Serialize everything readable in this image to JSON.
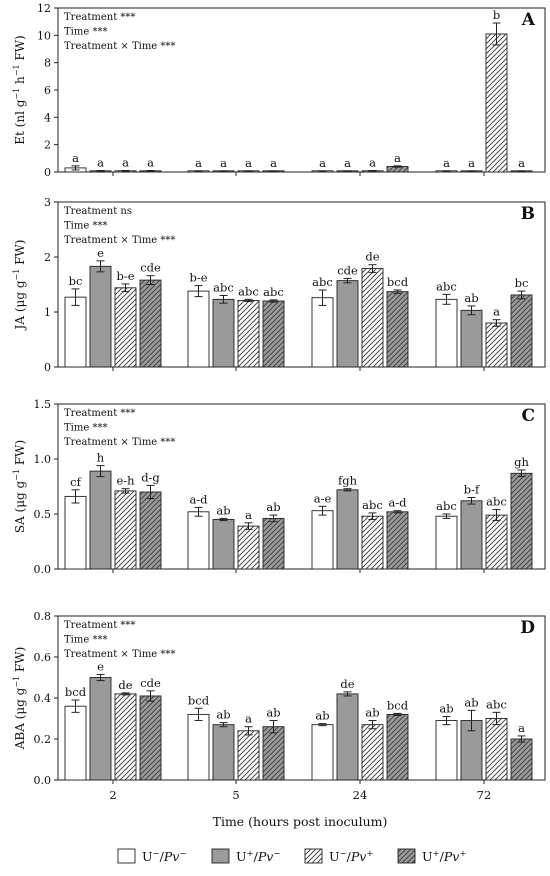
{
  "figure": {
    "xlabel": "Time (hours post inoculum)",
    "categories": [
      "2",
      "5",
      "24",
      "72"
    ],
    "legend": [
      {
        "prefix": "U",
        "sup1": "−",
        "mid": "/",
        "pv": "Pv",
        "sup2": "−",
        "pattern": "open"
      },
      {
        "prefix": "U",
        "sup1": "+",
        "mid": "/",
        "pv": "Pv",
        "sup2": "−",
        "pattern": "grey"
      },
      {
        "prefix": "U",
        "sup1": "−",
        "mid": "/",
        "pv": "Pv",
        "sup2": "+",
        "pattern": "hatch"
      },
      {
        "prefix": "U",
        "sup1": "+",
        "mid": "/",
        "pv": "Pv",
        "sup2": "+",
        "pattern": "grey-hatch"
      }
    ]
  },
  "chart_data": [
    {
      "type": "bar",
      "panel": "A",
      "ylabel_parts": [
        "Et (nl g",
        "−1",
        " h",
        "−1",
        " FW)"
      ],
      "ylim": [
        0,
        12
      ],
      "yticks": [
        0,
        2,
        4,
        6,
        8,
        10,
        12
      ],
      "stats": [
        "Treatment ***",
        "Time ***",
        "Treatment × Time ***"
      ],
      "series": [
        {
          "name": "U−/Pv−",
          "values": [
            0.3,
            0.05,
            0.05,
            0.05
          ],
          "errors": [
            0.15,
            0.03,
            0.03,
            0.03
          ],
          "letters": [
            "a",
            "a",
            "a",
            "a"
          ]
        },
        {
          "name": "U+/Pv−",
          "values": [
            0.08,
            0.05,
            0.05,
            0.05
          ],
          "errors": [
            0.03,
            0.03,
            0.03,
            0.03
          ],
          "letters": [
            "a",
            "a",
            "a",
            "a"
          ]
        },
        {
          "name": "U−/Pv+",
          "values": [
            0.08,
            0.05,
            0.08,
            10.1
          ],
          "errors": [
            0.03,
            0.03,
            0.03,
            0.8
          ],
          "letters": [
            "a",
            "a",
            "a",
            "b"
          ]
        },
        {
          "name": "U+/Pv+",
          "values": [
            0.08,
            0.05,
            0.4,
            0.05
          ],
          "errors": [
            0.03,
            0.03,
            0.05,
            0.03
          ],
          "letters": [
            "a",
            "a",
            "a",
            "a"
          ]
        }
      ]
    },
    {
      "type": "bar",
      "panel": "B",
      "ylabel_parts": [
        "JA (μg g",
        "−1",
        " FW)"
      ],
      "ylim": [
        0,
        3
      ],
      "yticks": [
        0,
        1,
        2,
        3
      ],
      "stats": [
        "Treatment ns",
        "Time ***",
        "Treatment × Time ***"
      ],
      "series": [
        {
          "name": "U−/Pv−",
          "values": [
            1.27,
            1.38,
            1.26,
            1.23
          ],
          "errors": [
            0.15,
            0.1,
            0.14,
            0.09
          ],
          "letters": [
            "bc",
            "b-e",
            "abc",
            "abc"
          ]
        },
        {
          "name": "U+/Pv−",
          "values": [
            1.83,
            1.23,
            1.57,
            1.03
          ],
          "errors": [
            0.1,
            0.07,
            0.04,
            0.08
          ],
          "letters": [
            "e",
            "abc",
            "cde",
            "ab"
          ]
        },
        {
          "name": "U−/Pv+",
          "values": [
            1.44,
            1.21,
            1.79,
            0.8
          ],
          "errors": [
            0.07,
            0.02,
            0.07,
            0.06
          ],
          "letters": [
            "b-e",
            "abc",
            "de",
            "a"
          ]
        },
        {
          "name": "U+/Pv+",
          "values": [
            1.58,
            1.2,
            1.37,
            1.31
          ],
          "errors": [
            0.08,
            0.02,
            0.03,
            0.07
          ],
          "letters": [
            "cde",
            "abc",
            "bcd",
            "bc"
          ]
        }
      ]
    },
    {
      "type": "bar",
      "panel": "C",
      "ylabel_parts": [
        "SA (μg g",
        "−1",
        " FW)"
      ],
      "ylim": [
        0,
        1.5
      ],
      "yticks": [
        0,
        0.5,
        1.0,
        1.5
      ],
      "ytick_labels": [
        "0.0",
        "0.5",
        "1.0",
        "1.5"
      ],
      "stats": [
        "Treatment ***",
        "Time ***",
        "Treatment × Time ***"
      ],
      "series": [
        {
          "name": "U−/Pv−",
          "values": [
            0.66,
            0.52,
            0.53,
            0.48
          ],
          "errors": [
            0.06,
            0.04,
            0.04,
            0.02
          ],
          "letters": [
            "cf",
            "a-d",
            "a-e",
            "abc"
          ]
        },
        {
          "name": "U+/Pv−",
          "values": [
            0.89,
            0.45,
            0.72,
            0.62
          ],
          "errors": [
            0.05,
            0.01,
            0.01,
            0.03
          ],
          "letters": [
            "h",
            "ab",
            "fgh",
            "b-f"
          ]
        },
        {
          "name": "U−/Pv+",
          "values": [
            0.71,
            0.39,
            0.48,
            0.49
          ],
          "errors": [
            0.02,
            0.03,
            0.03,
            0.05
          ],
          "letters": [
            "e-h",
            "a",
            "abc",
            "abc"
          ]
        },
        {
          "name": "U+/Pv+",
          "values": [
            0.7,
            0.46,
            0.52,
            0.87
          ],
          "errors": [
            0.06,
            0.03,
            0.01,
            0.03
          ],
          "letters": [
            "d-g",
            "ab",
            "a-d",
            "gh"
          ]
        }
      ]
    },
    {
      "type": "bar",
      "panel": "D",
      "ylabel_parts": [
        "ABA (μg g",
        "−1",
        " FW)"
      ],
      "ylim": [
        0,
        0.8
      ],
      "yticks": [
        0,
        0.2,
        0.4,
        0.6,
        0.8
      ],
      "ytick_labels": [
        "0.0",
        "0.2",
        "0.4",
        "0.6",
        "0.8"
      ],
      "stats": [
        "Treatment ***",
        "Time ***",
        "Treatment × Time ***"
      ],
      "series": [
        {
          "name": "U−/Pv−",
          "values": [
            0.36,
            0.32,
            0.27,
            0.29
          ],
          "errors": [
            0.03,
            0.03,
            0.005,
            0.02
          ],
          "letters": [
            "bcd",
            "bcd",
            "ab",
            "ab"
          ]
        },
        {
          "name": "U+/Pv−",
          "values": [
            0.5,
            0.27,
            0.42,
            0.29
          ],
          "errors": [
            0.015,
            0.01,
            0.01,
            0.05
          ],
          "letters": [
            "e",
            "ab",
            "de",
            "ab"
          ]
        },
        {
          "name": "U−/Pv+",
          "values": [
            0.42,
            0.24,
            0.27,
            0.3
          ],
          "errors": [
            0.005,
            0.02,
            0.02,
            0.03
          ],
          "letters": [
            "de",
            "a",
            "ab",
            "abc"
          ]
        },
        {
          "name": "U+/Pv+",
          "values": [
            0.41,
            0.26,
            0.32,
            0.2
          ],
          "errors": [
            0.025,
            0.03,
            0.005,
            0.015
          ],
          "letters": [
            "cde",
            "ab",
            "bcd",
            "a"
          ]
        }
      ]
    }
  ]
}
